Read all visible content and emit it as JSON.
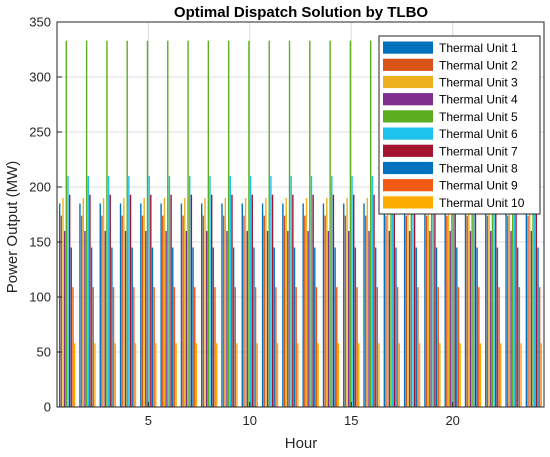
{
  "chart_data": {
    "type": "bar",
    "title": "Optimal Dispatch Solution by TLBO",
    "xlabel": "Hour",
    "ylabel": "Power Output (MW)",
    "x": [
      1,
      2,
      3,
      4,
      5,
      6,
      7,
      8,
      9,
      10,
      11,
      12,
      13,
      14,
      15,
      16,
      17,
      18,
      19,
      20,
      21,
      22,
      23,
      24
    ],
    "xlim": [
      0.5,
      24.5
    ],
    "ylim": [
      0,
      350
    ],
    "xticks": [
      5,
      10,
      15,
      20
    ],
    "yticks": [
      0,
      50,
      100,
      150,
      200,
      250,
      300,
      350
    ],
    "grid": true,
    "legend_position": "top-right",
    "series": [
      {
        "name": "Thermal Unit 1",
        "color": "#0072BD",
        "value": 185
      },
      {
        "name": "Thermal Unit 2",
        "color": "#D95319",
        "value": 174
      },
      {
        "name": "Thermal Unit 3",
        "color": "#EDB120",
        "value": 190
      },
      {
        "name": "Thermal Unit 4",
        "color": "#7E2F8E",
        "value": 160
      },
      {
        "name": "Thermal Unit 5",
        "color": "#4DBEEE",
        "value": 333,
        "display_color": "#5AAE1F"
      },
      {
        "name": "Thermal Unit 6",
        "color": "#4DBEEE",
        "value": 210,
        "display_color": "#1EC3EB"
      },
      {
        "name": "Thermal Unit 7",
        "color": "#A2142F",
        "value": 193
      },
      {
        "name": "Thermal Unit 8",
        "color": "#0072BD",
        "value": 145
      },
      {
        "name": "Thermal Unit 9",
        "color": "#D95319",
        "value": 109,
        "display_color": "#F05A12"
      },
      {
        "name": "Thermal Unit 10",
        "color": "#EDB120",
        "value": 58,
        "display_color": "#FCAC00"
      }
    ]
  }
}
